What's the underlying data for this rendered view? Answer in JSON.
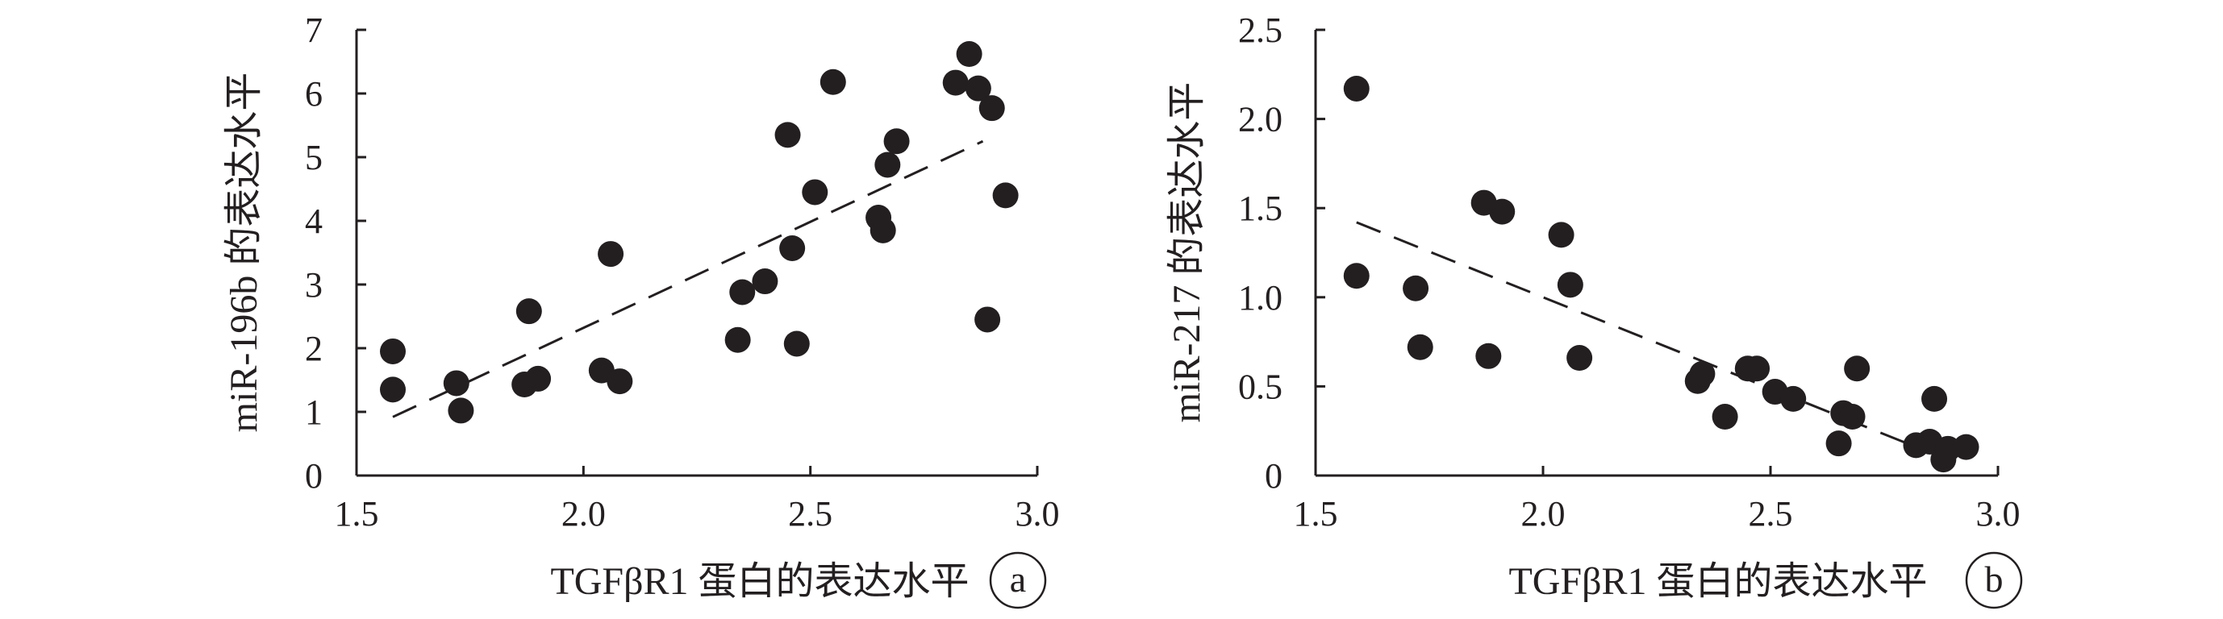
{
  "chart_data": [
    {
      "type": "scatter",
      "panel_label": "a",
      "xlabel": "TGFβR1 蛋白的表达水平",
      "ylabel": "miR-196b 的表达水平",
      "xlim": [
        1.5,
        3.0
      ],
      "ylim": [
        0,
        7
      ],
      "x_ticks": [
        "1.5",
        "2.0",
        "2.5",
        "3.0"
      ],
      "y_ticks": [
        "0",
        "1",
        "2",
        "3",
        "4",
        "5",
        "6",
        "7"
      ],
      "grid": false,
      "legend": "none",
      "trendline": {
        "style": "dashed",
        "points": [
          [
            1.58,
            0.92
          ],
          [
            2.88,
            5.25
          ]
        ]
      },
      "points": [
        [
          1.58,
          1.95
        ],
        [
          1.58,
          1.35
        ],
        [
          1.72,
          1.45
        ],
        [
          1.73,
          1.02
        ],
        [
          1.87,
          1.43
        ],
        [
          1.88,
          2.58
        ],
        [
          1.9,
          1.52
        ],
        [
          2.04,
          1.65
        ],
        [
          2.06,
          3.48
        ],
        [
          2.08,
          1.48
        ],
        [
          2.34,
          2.13
        ],
        [
          2.35,
          2.88
        ],
        [
          2.4,
          3.05
        ],
        [
          2.45,
          5.35
        ],
        [
          2.46,
          3.57
        ],
        [
          2.47,
          2.07
        ],
        [
          2.51,
          4.45
        ],
        [
          2.55,
          6.18
        ],
        [
          2.65,
          4.05
        ],
        [
          2.66,
          3.85
        ],
        [
          2.67,
          4.88
        ],
        [
          2.69,
          5.25
        ],
        [
          2.82,
          6.17
        ],
        [
          2.85,
          6.62
        ],
        [
          2.87,
          6.08
        ],
        [
          2.89,
          2.45
        ],
        [
          2.9,
          5.77
        ],
        [
          2.93,
          4.4
        ]
      ]
    },
    {
      "type": "scatter",
      "panel_label": "b",
      "xlabel": "TGFβR1 蛋白的表达水平",
      "ylabel": "miR-217 的表达水平",
      "xlim": [
        1.5,
        3.0
      ],
      "ylim": [
        0,
        2.5
      ],
      "x_ticks": [
        "1.5",
        "2.0",
        "2.5",
        "3.0"
      ],
      "y_ticks": [
        "0",
        "0.5",
        "1.0",
        "1.5",
        "2.0",
        "2.5"
      ],
      "grid": false,
      "legend": "none",
      "trendline": {
        "style": "dashed",
        "points": [
          [
            1.59,
            1.42
          ],
          [
            2.82,
            0.16
          ]
        ]
      },
      "points": [
        [
          1.59,
          2.17
        ],
        [
          1.59,
          1.12
        ],
        [
          1.72,
          1.05
        ],
        [
          1.73,
          0.72
        ],
        [
          1.87,
          1.53
        ],
        [
          1.88,
          0.67
        ],
        [
          1.91,
          1.48
        ],
        [
          2.04,
          1.35
        ],
        [
          2.06,
          1.07
        ],
        [
          2.08,
          0.66
        ],
        [
          2.34,
          0.53
        ],
        [
          2.35,
          0.57
        ],
        [
          2.4,
          0.33
        ],
        [
          2.45,
          0.6
        ],
        [
          2.47,
          0.6
        ],
        [
          2.51,
          0.47
        ],
        [
          2.55,
          0.43
        ],
        [
          2.65,
          0.18
        ],
        [
          2.66,
          0.35
        ],
        [
          2.68,
          0.33
        ],
        [
          2.69,
          0.6
        ],
        [
          2.82,
          0.17
        ],
        [
          2.85,
          0.19
        ],
        [
          2.86,
          0.43
        ],
        [
          2.88,
          0.09
        ],
        [
          2.89,
          0.15
        ],
        [
          2.93,
          0.16
        ]
      ]
    }
  ]
}
